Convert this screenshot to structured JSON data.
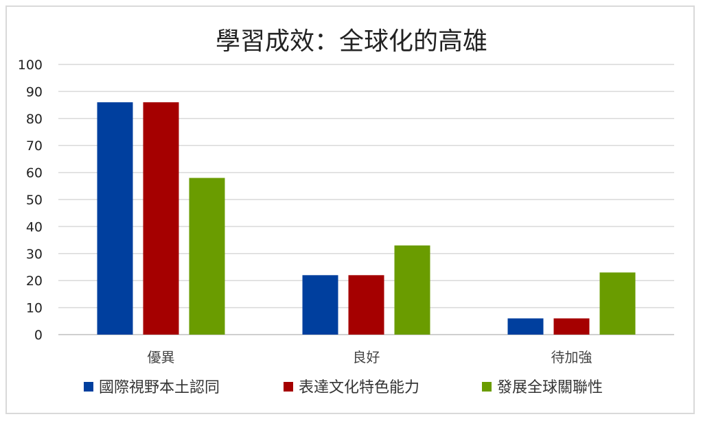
{
  "chart_data": {
    "type": "bar",
    "title": "學習成效：全球化的高雄",
    "categories": [
      "優異",
      "良好",
      "待加強"
    ],
    "series": [
      {
        "name": "國際視野本土認同",
        "color": "#003f9e",
        "values": [
          86,
          22,
          6
        ]
      },
      {
        "name": "表達文化特色能力",
        "color": "#a50000",
        "values": [
          86,
          22,
          6
        ]
      },
      {
        "name": "發展全球關聯性",
        "color": "#6a9c00",
        "values": [
          58,
          33,
          23
        ]
      }
    ],
    "ylim": [
      0,
      100
    ],
    "yticks": [
      0,
      10,
      20,
      30,
      40,
      50,
      60,
      70,
      80,
      90,
      100
    ],
    "grid": true,
    "legend_position": "bottom"
  }
}
